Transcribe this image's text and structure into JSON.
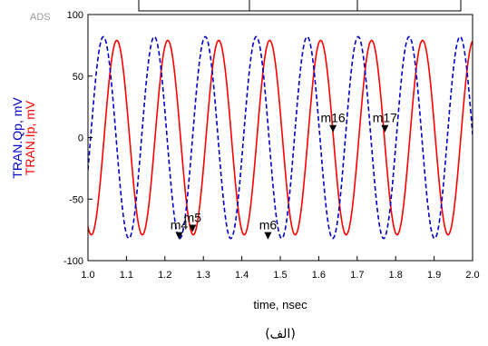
{
  "watermark": "ADS",
  "caption": "(الف)",
  "colors": {
    "series_red": "#ff0000",
    "series_blue": "#0000cc",
    "marker": "#000000"
  },
  "chart_data": {
    "type": "line",
    "xlabel": "time, nsec",
    "ylabels": [
      "TRAN.Qp, mV",
      "TRAN.Ip, mV"
    ],
    "xlim": [
      1.0,
      2.0
    ],
    "ylim": [
      -100,
      100
    ],
    "x_ticks": [
      "1.0",
      "1.1",
      "1.2",
      "1.3",
      "1.4",
      "1.5",
      "1.6",
      "1.7",
      "1.8",
      "1.9",
      "2.0"
    ],
    "y_ticks": [
      "100",
      "50",
      "0",
      "-50",
      "-100"
    ],
    "grid": false,
    "series": [
      {
        "name": "TRAN.Ip, mV",
        "color": "#ff0000",
        "style": "solid",
        "amplitude_mv": 79,
        "period_ns": 0.1325,
        "first_peak_ns": 1.075
      },
      {
        "name": "TRAN.Qp, mV",
        "color": "#0000cc",
        "style": "dashed",
        "amplitude_mv": 82,
        "period_ns": 0.1325,
        "first_peak_ns": 1.04
      }
    ],
    "markers": [
      {
        "label": "m4",
        "x": 1.237,
        "y": -82
      },
      {
        "label": "m5",
        "x": 1.272,
        "y": -76
      },
      {
        "label": "m6",
        "x": 1.468,
        "y": -82
      },
      {
        "label": "m16",
        "x": 1.637,
        "y": 5
      },
      {
        "label": "m17",
        "x": 1.772,
        "y": 5
      }
    ]
  }
}
